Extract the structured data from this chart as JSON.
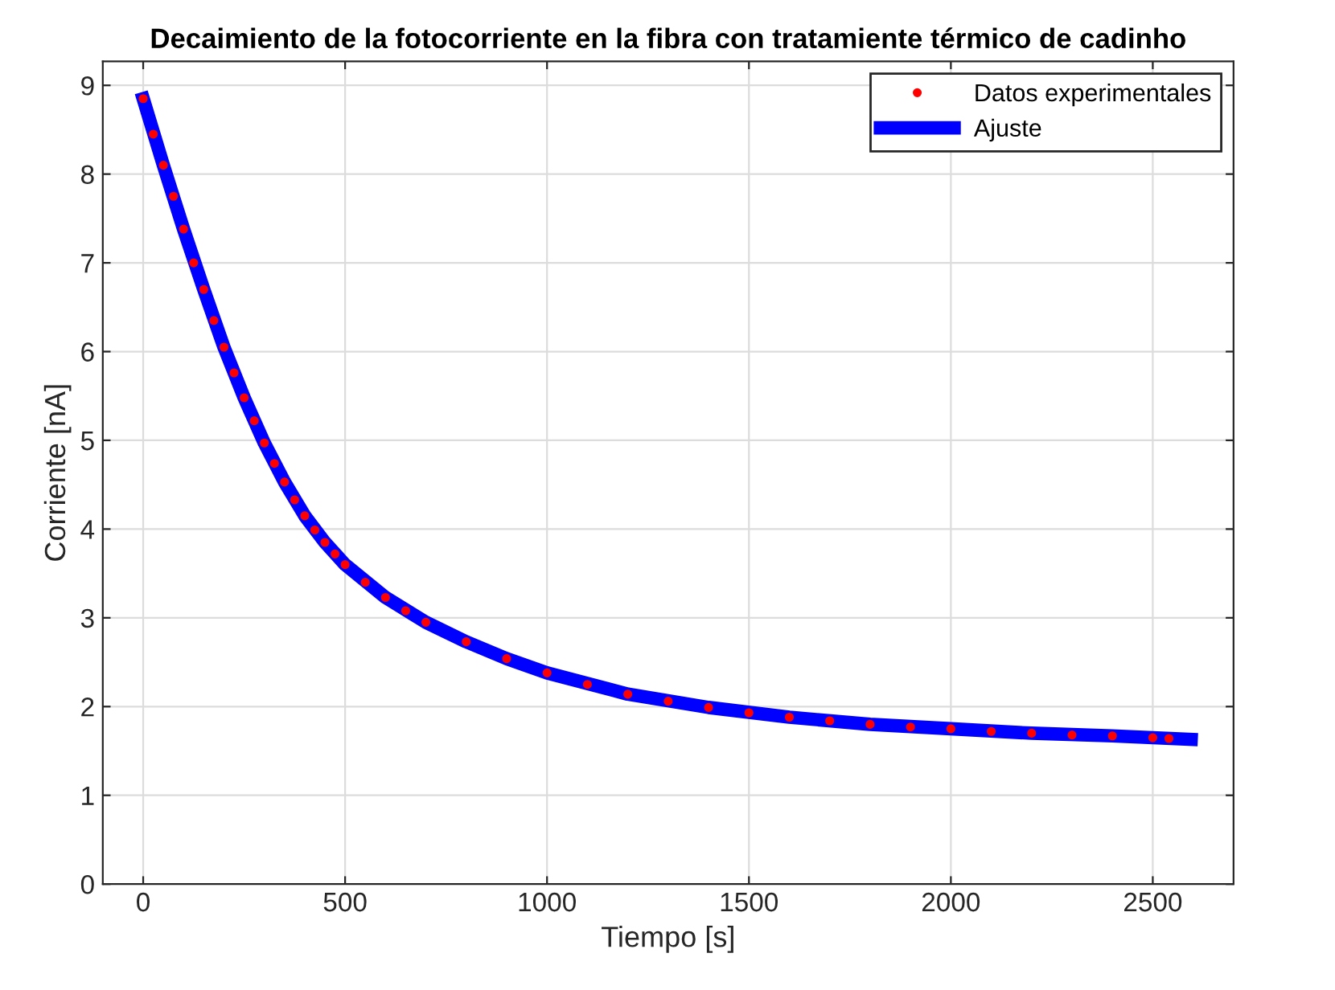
{
  "chart_data": {
    "type": "scatter",
    "title": "Decaimiento de la fotocorriente en la fibra con tratamiente térmico de cadinho",
    "xlabel": "Tiempo [s]",
    "ylabel": "Corriente [nA]",
    "xlim": [
      -100,
      2700
    ],
    "xticks": [
      0,
      500,
      1000,
      1500,
      2000,
      2500
    ],
    "ylim": [
      0,
      9.27
    ],
    "yticks": [
      0,
      1,
      2,
      3,
      4,
      5,
      6,
      7,
      8,
      9
    ],
    "grid": true,
    "legend": "top right",
    "series": [
      {
        "name": "Datos experimentales",
        "marker": "circle",
        "color": "#ff0000",
        "x": [
          0,
          25,
          50,
          75,
          100,
          125,
          150,
          175,
          200,
          225,
          250,
          275,
          300,
          325,
          350,
          375,
          400,
          425,
          450,
          475,
          500,
          550,
          600,
          650,
          700,
          800,
          900,
          1000,
          1100,
          1200,
          1300,
          1400,
          1500,
          1600,
          1700,
          1800,
          1900,
          2000,
          2100,
          2200,
          2300,
          2400,
          2500,
          2540
        ],
        "values": [
          8.85,
          8.45,
          8.1,
          7.75,
          7.38,
          7.0,
          6.7,
          6.35,
          6.05,
          5.76,
          5.48,
          5.22,
          4.97,
          4.74,
          4.53,
          4.33,
          4.15,
          3.99,
          3.85,
          3.72,
          3.6,
          3.4,
          3.23,
          3.08,
          2.95,
          2.73,
          2.54,
          2.38,
          2.25,
          2.14,
          2.06,
          1.99,
          1.93,
          1.88,
          1.84,
          1.8,
          1.77,
          1.75,
          1.72,
          1.7,
          1.68,
          1.67,
          1.65,
          1.64
        ]
      },
      {
        "name": "Ajuste",
        "type": "line",
        "marker": "none",
        "line_style": "solid",
        "color": "#0000ff",
        "x": [
          0,
          50,
          100,
          150,
          200,
          250,
          300,
          350,
          400,
          450,
          500,
          600,
          700,
          800,
          900,
          1000,
          1200,
          1400,
          1600,
          1800,
          2000,
          2200,
          2400,
          2595
        ],
        "values": [
          8.85,
          8.1,
          7.38,
          6.7,
          6.05,
          5.48,
          4.97,
          4.53,
          4.15,
          3.85,
          3.6,
          3.23,
          2.95,
          2.73,
          2.54,
          2.38,
          2.14,
          1.99,
          1.88,
          1.8,
          1.75,
          1.7,
          1.67,
          1.63
        ]
      }
    ]
  }
}
